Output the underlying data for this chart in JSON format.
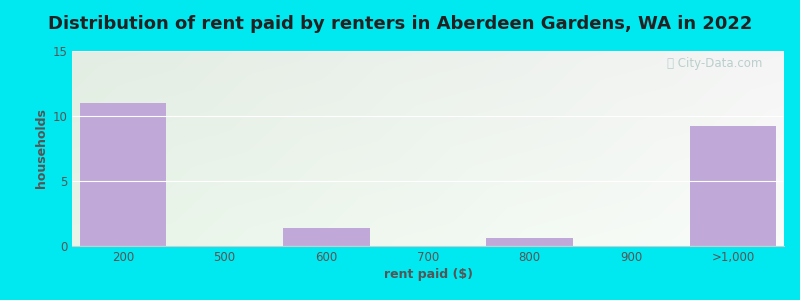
{
  "title": "Distribution of rent paid by renters in Aberdeen Gardens, WA in 2022",
  "xlabel": "rent paid ($)",
  "ylabel": "households",
  "categories": [
    "200",
    "500",
    "600",
    "700",
    "800",
    "900",
    ">1,000"
  ],
  "values": [
    11,
    0,
    1.4,
    0,
    0.6,
    0,
    9.2
  ],
  "bar_color": "#c0a8d8",
  "bar_edgecolor": "#c0a8d8",
  "ylim": [
    0,
    15
  ],
  "yticks": [
    0,
    5,
    10,
    15
  ],
  "background_outer": "#00e8f0",
  "grid_color": "#e8e8e8",
  "title_fontsize": 13,
  "axis_label_fontsize": 9,
  "tick_fontsize": 8.5,
  "tick_color": "#555555",
  "watermark_text": "City-Data.com",
  "bg_colors": [
    "#dff0df",
    "#f8fbf8",
    "#f0f8f8",
    "#ffffff"
  ],
  "title_color": "#222222"
}
